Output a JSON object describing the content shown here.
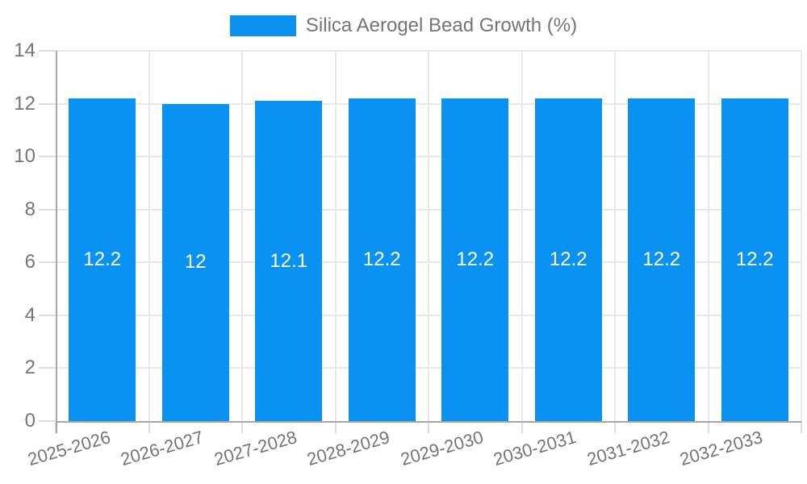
{
  "chart_data": {
    "type": "bar",
    "legend": {
      "label": "Silica Aerogel Bead Growth (%)",
      "position": "top"
    },
    "categories": [
      "2025-2026",
      "2026-2027",
      "2027-2028",
      "2028-2029",
      "2029-2030",
      "2030-2031",
      "2031-2032",
      "2032-2033"
    ],
    "values": [
      12.2,
      12,
      12.1,
      12.2,
      12.2,
      12.2,
      12.2,
      12.2
    ],
    "value_labels": [
      "12.2",
      "12",
      "12.1",
      "12.2",
      "12.2",
      "12.2",
      "12.2",
      "12.2"
    ],
    "xlabel": "",
    "ylabel": "",
    "ylim": [
      0,
      14
    ],
    "y_ticks": [
      0,
      2,
      4,
      6,
      8,
      10,
      12,
      14
    ],
    "grid": true,
    "legend_position": "top-center",
    "bar_color": "#0a92f2",
    "bar_label_color": "#ffffff",
    "axis_text_color": "#757575",
    "grid_color": "#e8e8e8",
    "axis_line_color": "#a6a6a6"
  }
}
